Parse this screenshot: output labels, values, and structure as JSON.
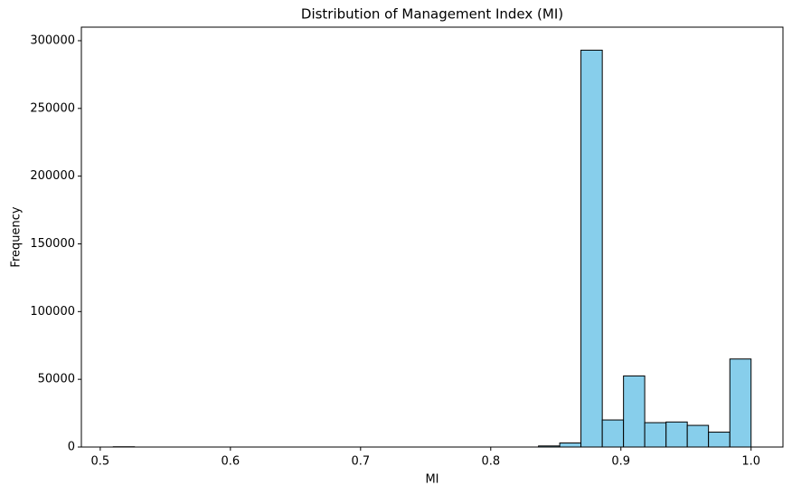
{
  "chart_data": {
    "type": "histogram",
    "title": "Distribution of Management Index (MI)",
    "x_label": "MI",
    "y_label": "Frequency",
    "bins": [
      0.51,
      0.5263,
      0.5427,
      0.559,
      0.5753,
      0.5917,
      0.608,
      0.6243,
      0.6407,
      0.657,
      0.6733,
      0.6897,
      0.706,
      0.7223,
      0.7387,
      0.755,
      0.7713,
      0.7877,
      0.804,
      0.8203,
      0.8367,
      0.853,
      0.8693,
      0.8857,
      0.902,
      0.9183,
      0.9347,
      0.951,
      0.9673,
      0.9837,
      1.0
    ],
    "values": [
      200,
      0,
      0,
      0,
      0,
      0,
      0,
      0,
      0,
      0,
      0,
      0,
      0,
      0,
      0,
      0,
      0,
      0,
      0,
      0,
      800,
      3000,
      293000,
      20000,
      52500,
      18000,
      18500,
      16000,
      11000,
      65000
    ],
    "color": "#87ceeb",
    "edgecolor": "#000000",
    "xlim": [
      0.4855,
      1.0245
    ],
    "xticks": [
      0.5,
      0.6,
      0.7,
      0.8,
      0.9,
      {
        "value": 1.0,
        "label": "1.0"
      }
    ],
    "ylim": [
      0,
      310000
    ],
    "yticks": [
      0,
      50000,
      100000,
      150000,
      200000,
      250000,
      300000
    ],
    "grid": false
  }
}
